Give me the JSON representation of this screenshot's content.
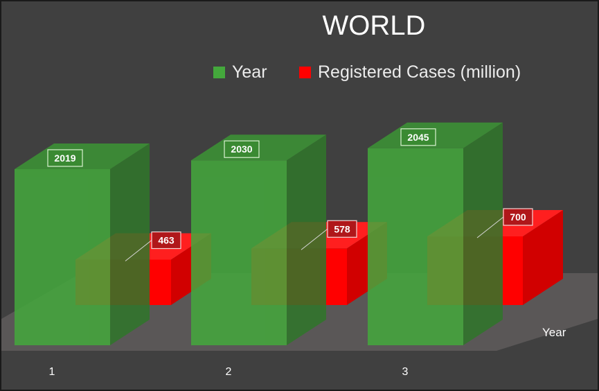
{
  "chart_data": {
    "type": "bar",
    "title": "WORLD",
    "xlabel": "",
    "depth_axis_label": "Year",
    "categories": [
      "1",
      "2",
      "3"
    ],
    "series": [
      {
        "name": "Year",
        "values": [
          2019,
          2030,
          2045
        ],
        "color": "#44a83c"
      },
      {
        "name": "Registered Cases (million)",
        "values": [
          463,
          578,
          700
        ],
        "color": "#ff0000"
      }
    ],
    "legend_position": "top",
    "grid": false,
    "background_color": "#404040",
    "floor_color": "#5a5757"
  }
}
